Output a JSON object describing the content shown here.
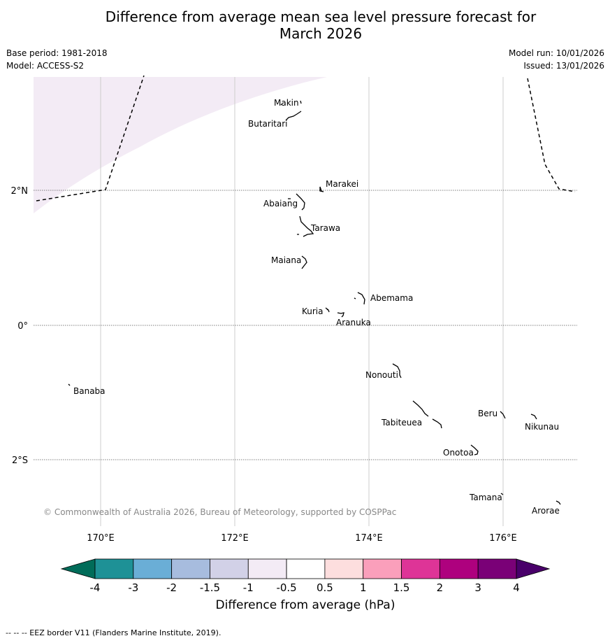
{
  "title_line1": "Difference from average mean sea level pressure forecast for",
  "title_line2": "March 2026",
  "base_period": "Base period: 1981-2018",
  "model": "Model: ACCESS-S2",
  "model_run": "Model run: 10/01/2026",
  "issued": "Issued: 13/01/2026",
  "map": {
    "lon_ticks": [
      "170°E",
      "172°E",
      "174°E",
      "176°E"
    ],
    "lat_ticks": [
      "2°N",
      "0°",
      "2°S"
    ],
    "copyright": "© Commonwealth of Australia 2026, Bureau of Meteorology, supported by COSPPac",
    "islands": [
      "Makin",
      "Butaritari",
      "Marakei",
      "Abaiang",
      "Tarawa",
      "Maiana",
      "Abemama",
      "Kuria",
      "Aranuka",
      "Banaba",
      "Nonouti",
      "Tabiteuea",
      "Beru",
      "Nikunau",
      "Onotoa",
      "Tamana",
      "Arorae"
    ],
    "shaded_category": "-0.5 to -1 hPa",
    "shaded_color": "#f3ebf5"
  },
  "colorbar": {
    "tick_labels": [
      "-4",
      "-3",
      "-2",
      "-1.5",
      "-1",
      "-0.5",
      "0.5",
      "1",
      "1.5",
      "2",
      "3",
      "4"
    ],
    "colors": [
      "#1e9196",
      "#6aaed6",
      "#a7bcde",
      "#d2d1e7",
      "#f3ebf5",
      "#ffffff",
      "#fddede",
      "#fa9fbb",
      "#de3497",
      "#ae017e",
      "#7a0177"
    ],
    "under_color": "#016c59",
    "over_color": "#49006a",
    "label": "Difference from average (hPa)"
  },
  "footnote": "--  --  -- EEZ border V11 (Flanders Marine Institute, 2019)."
}
